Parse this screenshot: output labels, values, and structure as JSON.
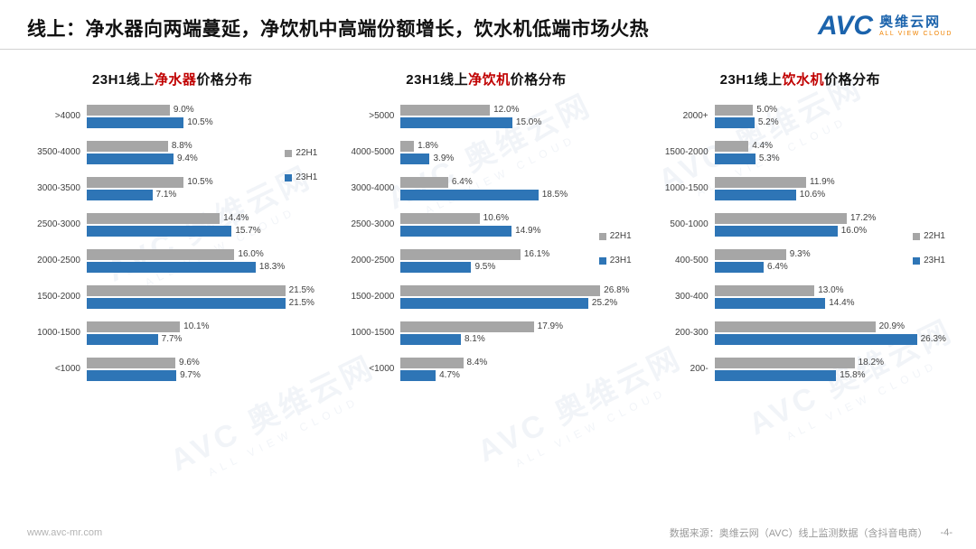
{
  "header": {
    "title": "线上：净水器向两端蔓延，净饮机中高端份额增长，饮水机低端市场火热",
    "logo": {
      "abbr": "AVC",
      "name": "奥维云网",
      "tagline": "ALL VIEW CLOUD"
    }
  },
  "watermark": {
    "main": "AVC 奥维云网",
    "sub": "ALL VIEW CLOUD"
  },
  "colors": {
    "22H1": "#a6a6a6",
    "23H1": "#2e75b6",
    "accent_red": "#c00000",
    "brand_blue": "#1b63ac",
    "brand_orange": "#f08300"
  },
  "footer": {
    "left": "www.avc-mr.com",
    "source": "数据来源：奥维云网（AVC）线上监测数据（含抖音电商）",
    "page": "-4-"
  },
  "chart_data": [
    {
      "type": "bar",
      "orientation": "horizontal",
      "title_parts": [
        "23H1线上",
        "净水器",
        "价格分布"
      ],
      "categories": [
        ">4000",
        "3500-4000",
        "3000-3500",
        "2500-3000",
        "2000-2500",
        "1500-2000",
        "1000-1500",
        "<1000"
      ],
      "series": [
        {
          "name": "22H1",
          "values": [
            9.0,
            8.8,
            10.5,
            14.4,
            16.0,
            21.5,
            10.1,
            9.6
          ]
        },
        {
          "name": "23H1",
          "values": [
            10.5,
            9.4,
            7.1,
            15.7,
            18.3,
            21.5,
            7.7,
            9.7
          ]
        }
      ],
      "xlim": [
        0,
        25
      ],
      "value_suffix": "%",
      "legend": [
        "22H1",
        "23H1"
      ],
      "legend_position": "right-upper"
    },
    {
      "type": "bar",
      "orientation": "horizontal",
      "title_parts": [
        "23H1线上",
        "净饮机",
        "价格分布"
      ],
      "categories": [
        ">5000",
        "4000-5000",
        "3000-4000",
        "2500-3000",
        "2000-2500",
        "1500-2000",
        "1000-1500",
        "<1000"
      ],
      "series": [
        {
          "name": "22H1",
          "values": [
            12.0,
            1.8,
            6.4,
            10.6,
            16.1,
            26.8,
            17.9,
            8.4
          ]
        },
        {
          "name": "23H1",
          "values": [
            15.0,
            3.9,
            18.5,
            14.9,
            9.5,
            25.2,
            8.1,
            4.7
          ]
        }
      ],
      "xlim": [
        0,
        31
      ],
      "value_suffix": "%",
      "legend": [
        "22H1",
        "23H1"
      ],
      "legend_position": "right-middle"
    },
    {
      "type": "bar",
      "orientation": "horizontal",
      "title_parts": [
        "23H1线上",
        "饮水机",
        "价格分布"
      ],
      "categories": [
        "2000+",
        "1500-2000",
        "1000-1500",
        "500-1000",
        "400-500",
        "300-400",
        "200-300",
        "200-"
      ],
      "series": [
        {
          "name": "22H1",
          "values": [
            5.0,
            4.4,
            11.9,
            17.2,
            9.3,
            13.0,
            20.9,
            18.2
          ]
        },
        {
          "name": "23H1",
          "values": [
            5.2,
            5.3,
            10.6,
            16.0,
            6.4,
            14.4,
            26.3,
            15.8
          ]
        }
      ],
      "xlim": [
        0,
        30
      ],
      "value_suffix": "%",
      "legend": [
        "22H1",
        "23H1"
      ],
      "legend_position": "right-middle"
    }
  ]
}
